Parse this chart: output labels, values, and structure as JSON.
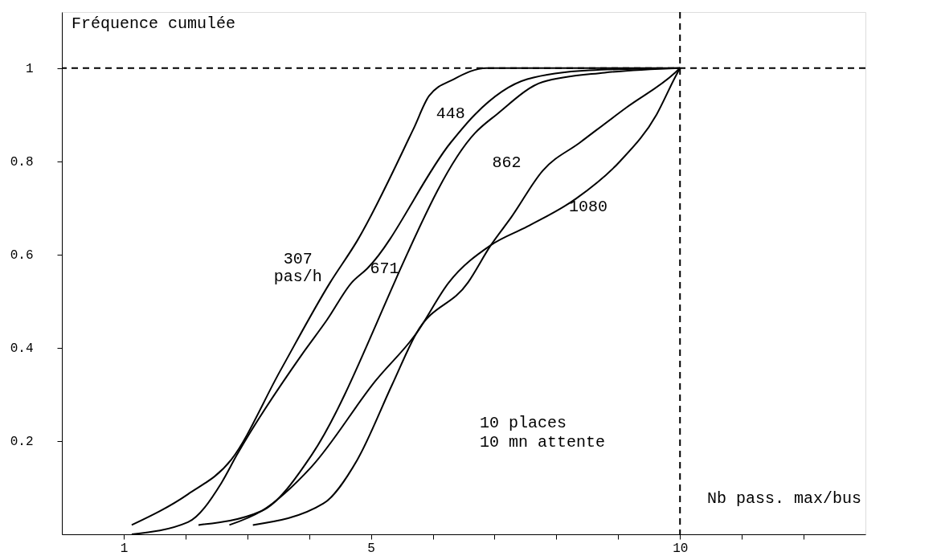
{
  "chart_data": {
    "type": "line",
    "ylabel": "Fréquence cumulée",
    "xlabel": "Nb pass. max/bus",
    "xlim": [
      0,
      13
    ],
    "ylim": [
      0,
      1.12
    ],
    "xticks": [
      {
        "value": 1,
        "label": "1"
      },
      {
        "value": 2,
        "label": null
      },
      {
        "value": 3,
        "label": null
      },
      {
        "value": 4,
        "label": null
      },
      {
        "value": 5,
        "label": "5"
      },
      {
        "value": 6,
        "label": null
      },
      {
        "value": 7,
        "label": null
      },
      {
        "value": 8,
        "label": null
      },
      {
        "value": 9,
        "label": null
      },
      {
        "value": 10,
        "label": "10"
      },
      {
        "value": 11,
        "label": null
      },
      {
        "value": 12,
        "label": null
      }
    ],
    "yticks": [
      0.2,
      0.4,
      0.6,
      0.8,
      1
    ],
    "grid": false,
    "marker": "none",
    "line_style": "solid",
    "series": [
      {
        "name": "307\npas/h",
        "color": "#000000",
        "x": [
          1.13,
          2.04,
          2.74,
          3.53,
          4.34,
          4.78,
          5.69,
          5.94,
          6.34,
          6.87,
          10
        ],
        "values": [
          0.02,
          0.086,
          0.16,
          0.35,
          0.54,
          0.63,
          0.87,
          0.94,
          0.976,
          1.0,
          1.0
        ]
      },
      {
        "name": "448",
        "color": "#000000",
        "x": [
          1.13,
          2.04,
          2.58,
          2.83,
          3.88,
          4.29,
          4.69,
          4.94,
          6.29,
          6.68,
          7.53,
          8.53,
          10
        ],
        "values": [
          0.0,
          0.026,
          0.11,
          0.17,
          0.385,
          0.46,
          0.54,
          0.57,
          0.84,
          0.9,
          0.976,
          0.995,
          1.0
        ]
      },
      {
        "name": "671",
        "color": "#000000",
        "x": [
          2.21,
          3.23,
          4.04,
          5.38,
          5.48,
          6.68,
          7.03,
          7.78,
          8.78,
          10
        ],
        "values": [
          0.02,
          0.05,
          0.17,
          0.54,
          0.57,
          0.86,
          0.9,
          0.97,
          0.99,
          1.0
        ]
      },
      {
        "name": "862",
        "color": "#000000",
        "x": [
          3.09,
          4.23,
          4.78,
          5.34,
          5.73,
          6.57,
          6.94,
          7.27,
          7.78,
          8.38,
          9.13,
          9.92,
          10
        ],
        "values": [
          0.02,
          0.066,
          0.16,
          0.32,
          0.43,
          0.54,
          0.62,
          0.68,
          0.78,
          0.84,
          0.915,
          0.99,
          1.0
        ]
      },
      {
        "name": "1080",
        "color": "#000000",
        "x": [
          2.71,
          3.23,
          4.04,
          5.08,
          5.73,
          6.26,
          6.94,
          7.53,
          8.32,
          9.03,
          9.62,
          9.92,
          10
        ],
        "values": [
          0.02,
          0.05,
          0.145,
          0.33,
          0.43,
          0.54,
          0.62,
          0.66,
          0.72,
          0.8,
          0.9,
          0.98,
          1.0
        ]
      }
    ],
    "ref_lines": [
      {
        "axis": "y",
        "value": 1,
        "line_style": "dashed",
        "color": "#000000"
      },
      {
        "axis": "x",
        "value": 10,
        "line_style": "dashed",
        "color": "#000000"
      }
    ],
    "annotations": [
      "10 places\n10 mn attente"
    ]
  }
}
